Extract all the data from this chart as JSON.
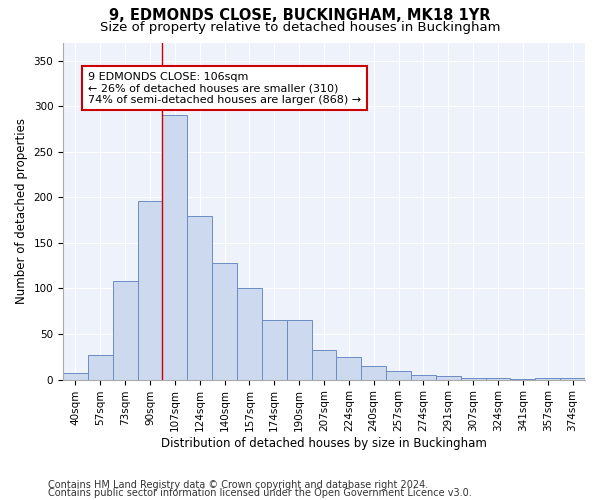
{
  "title1": "9, EDMONDS CLOSE, BUCKINGHAM, MK18 1YR",
  "title2": "Size of property relative to detached houses in Buckingham",
  "xlabel": "Distribution of detached houses by size in Buckingham",
  "ylabel": "Number of detached properties",
  "categories": [
    "40sqm",
    "57sqm",
    "73sqm",
    "90sqm",
    "107sqm",
    "124sqm",
    "140sqm",
    "157sqm",
    "174sqm",
    "190sqm",
    "207sqm",
    "224sqm",
    "240sqm",
    "257sqm",
    "274sqm",
    "291sqm",
    "307sqm",
    "324sqm",
    "341sqm",
    "357sqm",
    "374sqm"
  ],
  "values": [
    7,
    27,
    108,
    196,
    290,
    180,
    128,
    100,
    65,
    65,
    33,
    25,
    15,
    9,
    5,
    4,
    2,
    2,
    1,
    2,
    2
  ],
  "bar_color": "#ccd9ee",
  "bar_edge_color": "#6b8cc4",
  "vline_x_index": 4,
  "annotation_text": "9 EDMONDS CLOSE: 106sqm\n← 26% of detached houses are smaller (310)\n74% of semi-detached houses are larger (868) →",
  "annotation_box_color": "#ffffff",
  "annotation_box_edge": "#cc0000",
  "vline_color": "#cc0000",
  "ylim": [
    0,
    370
  ],
  "yticks": [
    0,
    50,
    100,
    150,
    200,
    250,
    300,
    350
  ],
  "footer1": "Contains HM Land Registry data © Crown copyright and database right 2024.",
  "footer2": "Contains public sector information licensed under the Open Government Licence v3.0.",
  "background_color": "#eef2fb",
  "grid_color": "#ffffff",
  "title1_fontsize": 10.5,
  "title2_fontsize": 9.5,
  "xlabel_fontsize": 8.5,
  "ylabel_fontsize": 8.5,
  "tick_fontsize": 7.5,
  "footer_fontsize": 7.0,
  "ann_fontsize": 8.0
}
